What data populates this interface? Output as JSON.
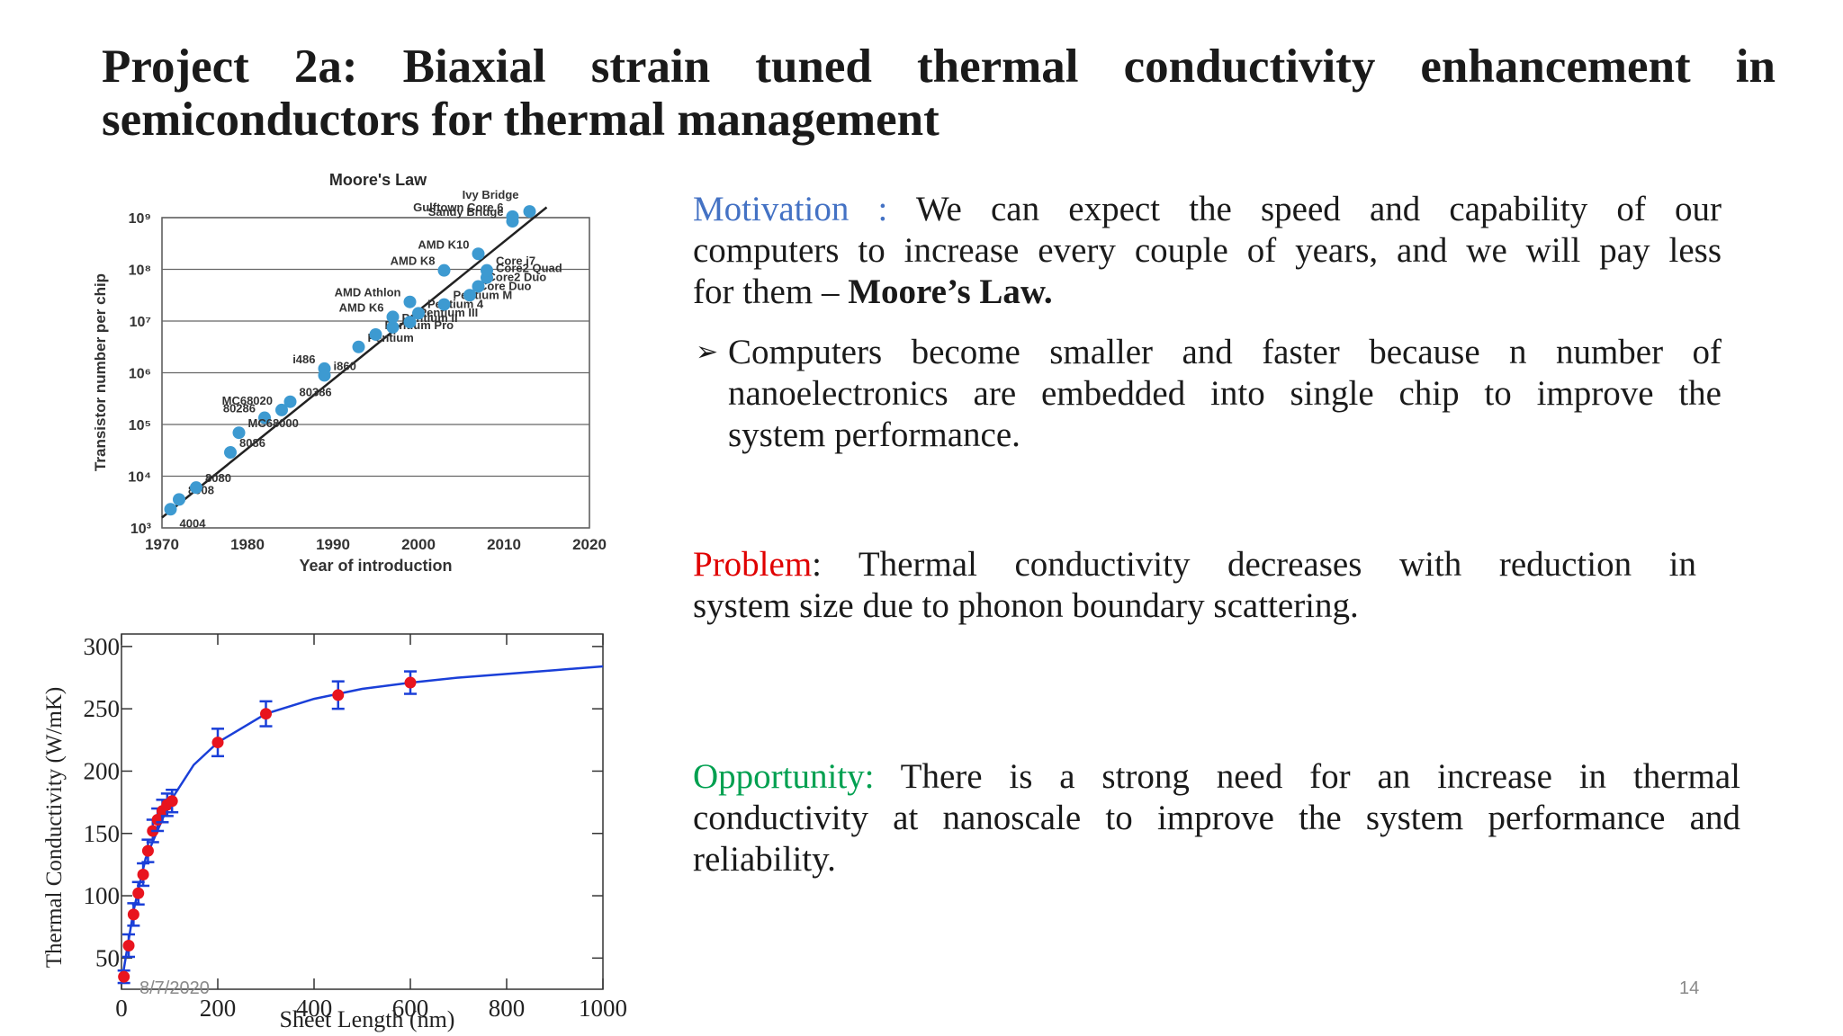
{
  "slide": {
    "title_line1": "Project 2a: Biaxial strain tuned thermal conductivity enhancement in",
    "title_line2": "semiconductors for thermal management",
    "motivation": {
      "label": "Motivation :",
      "label_color": "#4472c4",
      "line1": "We can expect the speed and capability of our",
      "line2": "computers to increase every couple of years, and we will pay less",
      "line3_pre": "for them – ",
      "line3_bold": "Moore’s Law."
    },
    "bullet": {
      "marker": "➢",
      "line1": "Computers become smaller and faster because n number of",
      "line2": "nanoelectronics are embedded into single chip to improve the",
      "line3": "system performance."
    },
    "problem": {
      "label": "Problem",
      "label_color": "#e00000",
      "line1": ":   Thermal conductivity decreases with reduction in",
      "line2": "system size due to phonon boundary scattering."
    },
    "opportunity": {
      "label": "Opportunity:",
      "label_color": "#00a050",
      "line1": "There is a strong need for an increase in thermal",
      "line2": "conductivity at nanoscale to improve the system performance and",
      "line3": "reliability."
    },
    "footer": {
      "date": "8/7/2020",
      "page": "14"
    }
  },
  "chart_data": [
    {
      "type": "scatter",
      "title": "Moore's Law",
      "xlabel": "Year of introduction",
      "ylabel": "Transistor number per chip",
      "xlim": [
        1970,
        2020
      ],
      "ylim_log10": [
        3,
        9
      ],
      "x_ticks": [
        "1970",
        "1980",
        "1990",
        "2000",
        "2010",
        "2020"
      ],
      "y_ticks": [
        "10³",
        "10⁴",
        "10⁵",
        "10⁶",
        "10⁷",
        "10⁸",
        "10⁹"
      ],
      "point_color": "#3d9ad1",
      "trend_line": {
        "x": [
          1970,
          2015
        ],
        "log10_y": [
          3.2,
          9.2
        ]
      },
      "points": [
        {
          "label": "4004",
          "x": 1971,
          "log10_y": 3.36
        },
        {
          "label": "8008",
          "x": 1972,
          "log10_y": 3.55
        },
        {
          "label": "8080",
          "x": 1974,
          "log10_y": 3.78
        },
        {
          "label": "8086",
          "x": 1978,
          "log10_y": 4.46
        },
        {
          "label": "80286",
          "x": 1982,
          "log10_y": 5.13
        },
        {
          "label": "MC68000",
          "x": 1979,
          "log10_y": 4.84
        },
        {
          "label": "MC68020",
          "x": 1984,
          "log10_y": 5.28
        },
        {
          "label": "80386",
          "x": 1985,
          "log10_y": 5.44
        },
        {
          "label": "i486",
          "x": 1989,
          "log10_y": 6.08
        },
        {
          "label": "i860",
          "x": 1989,
          "log10_y": 5.95
        },
        {
          "label": "Pentium",
          "x": 1993,
          "log10_y": 6.5
        },
        {
          "label": "Pentium Pro",
          "x": 1995,
          "log10_y": 6.74
        },
        {
          "label": "Pentium II",
          "x": 1997,
          "log10_y": 6.88
        },
        {
          "label": "Pentium III",
          "x": 1999,
          "log10_y": 6.98
        },
        {
          "label": "Pentium 4",
          "x": 2000,
          "log10_y": 7.15
        },
        {
          "label": "AMD K6",
          "x": 1997,
          "log10_y": 7.08
        },
        {
          "label": "AMD Athlon",
          "x": 1999,
          "log10_y": 7.37
        },
        {
          "label": "Pentium M",
          "x": 2003,
          "log10_y": 7.32
        },
        {
          "label": "Core Duo",
          "x": 2006,
          "log10_y": 7.5
        },
        {
          "label": "Core2 Duo",
          "x": 2007,
          "log10_y": 7.67
        },
        {
          "label": "Core2 Quad",
          "x": 2008,
          "log10_y": 7.84
        },
        {
          "label": "Core i7",
          "x": 2008,
          "log10_y": 7.98
        },
        {
          "label": "AMD K8",
          "x": 2003,
          "log10_y": 7.98
        },
        {
          "label": "AMD K10",
          "x": 2007,
          "log10_y": 8.3
        },
        {
          "label": "Sandy Bridge",
          "x": 2011,
          "log10_y": 8.93
        },
        {
          "label": "Gulftown Core 6",
          "x": 2011,
          "log10_y": 9.02
        },
        {
          "label": "Ivy Bridge",
          "x": 2013,
          "log10_y": 9.12
        }
      ]
    },
    {
      "type": "line",
      "title": "",
      "xlabel": "Sheet Length (nm)",
      "ylabel": "Thermal Conductivity (W/mK)",
      "xlim": [
        0,
        1000
      ],
      "ylim": [
        25,
        310
      ],
      "x_ticks": [
        "0",
        "200",
        "400",
        "600",
        "800",
        "1000"
      ],
      "y_ticks": [
        "50",
        "100",
        "150",
        "200",
        "250",
        "300"
      ],
      "line_color": "#1a3fd8",
      "marker_color": "#e8141e",
      "series": [
        {
          "x": [
            5,
            15,
            25,
            35,
            45,
            55,
            65,
            75,
            85,
            95,
            105,
            200,
            300,
            450,
            600
          ],
          "values": [
            35,
            60,
            85,
            102,
            117,
            136,
            152,
            161,
            168,
            173,
            176,
            223,
            246,
            261,
            271
          ],
          "errors": [
            5,
            9,
            9,
            9,
            9,
            9,
            9,
            9,
            9,
            9,
            9,
            11,
            10,
            11,
            9
          ]
        }
      ],
      "fit_curve_x": [
        0,
        25,
        50,
        100,
        150,
        200,
        300,
        400,
        500,
        600,
        700,
        800,
        900,
        1000
      ],
      "fit_curve_y": [
        30,
        88,
        130,
        175,
        205,
        223,
        246,
        258,
        266,
        271,
        275,
        278,
        281,
        284
      ]
    }
  ]
}
